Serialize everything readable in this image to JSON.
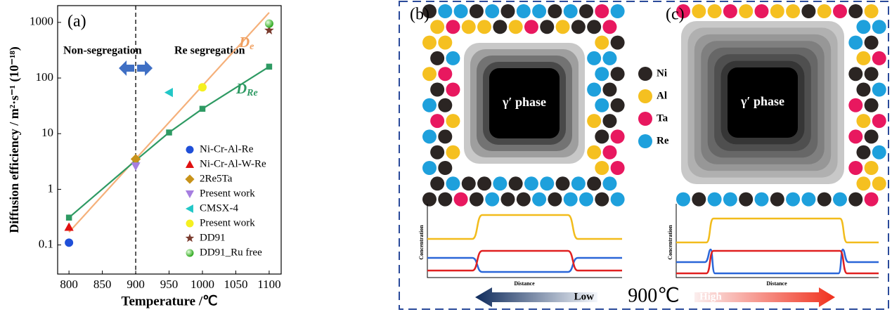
{
  "chart_data": {
    "type": "scatter",
    "panel_label": "(a)",
    "x_label": "Temperature /℃",
    "y_label": "Diffusion efficiency / m²·s⁻¹ (10⁻¹⁸)",
    "log_y": true,
    "xlim": [
      783,
      1118
    ],
    "ylim": [
      0.03,
      2000
    ],
    "xticks": [
      800,
      850,
      900,
      950,
      1000,
      1050,
      1100
    ],
    "yticks": [
      0.1,
      1,
      10,
      100,
      1000
    ],
    "vline": 900,
    "annotations": [
      "Non-segregation",
      "Re segregation"
    ],
    "series": [
      {
        "name": "Ni-Cr-Al-Re",
        "color": "#1f4fd8",
        "marker": "circle",
        "x": [
          800
        ],
        "values": [
          0.11
        ]
      },
      {
        "name": "Ni-Cr-Al-W-Re",
        "color": "#e01010",
        "marker": "triangle-up",
        "x": [
          800
        ],
        "values": [
          0.21
        ]
      },
      {
        "name": "2Re5Ta",
        "color": "#c8931a",
        "marker": "diamond",
        "x": [
          900
        ],
        "values": [
          3.5
        ]
      },
      {
        "name": "Present work",
        "color": "#a67ee0",
        "marker": "triangle-down",
        "x": [
          900
        ],
        "values": [
          2.6
        ]
      },
      {
        "name": "CMSX-4",
        "color": "#22c7c7",
        "marker": "triangle-left",
        "x": [
          950
        ],
        "values": [
          55
        ]
      },
      {
        "name": "Present work",
        "color": "#f5f020",
        "marker": "circle",
        "x": [
          1000
        ],
        "values": [
          68
        ]
      },
      {
        "name": "DD91",
        "color": "#7a3b2e",
        "marker": "star",
        "x": [
          1100
        ],
        "values": [
          720
        ]
      },
      {
        "name": "DD91_Ru free",
        "color": "#3ccf2a",
        "marker": "sphere",
        "x": [
          1100
        ],
        "values": [
          950
        ]
      }
    ],
    "lines": [
      {
        "name": "D",
        "subscript": "e",
        "color": "#f5b07a",
        "label_color": "#f0a060",
        "marker": null,
        "x": [
          800,
          1100
        ],
        "values": [
          0.17,
          1500
        ]
      },
      {
        "name": "D",
        "subscript": "Re",
        "color": "#2e9a63",
        "label_color": "#2e9a63",
        "marker": "square",
        "x": [
          800,
          900,
          950,
          1000,
          1100
        ],
        "values": [
          0.31,
          3.3,
          10.5,
          28,
          160
        ]
      }
    ]
  },
  "diagram": {
    "panels": [
      {
        "label": "(b)",
        "phase": "γ′ phase"
      },
      {
        "label": "(c)",
        "phase": "γ′ phase"
      }
    ],
    "atoms": [
      {
        "label": "Ni",
        "color": "#2b2523"
      },
      {
        "label": "Al",
        "color": "#f5c020"
      },
      {
        "label": "Ta",
        "color": "#e8185f"
      },
      {
        "label": "Re",
        "color": "#1ea0dc"
      }
    ],
    "profile_y_label": "Concentration",
    "profile_x_label": "Distance",
    "arrow": {
      "low": "Low",
      "temperature": "900℃",
      "high": "High"
    }
  }
}
